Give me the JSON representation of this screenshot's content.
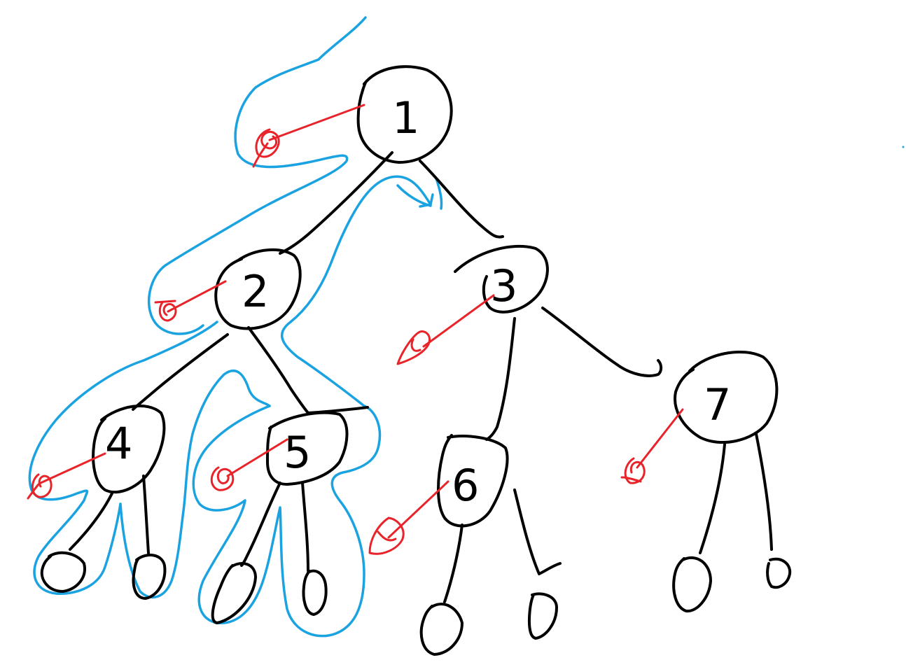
{
  "diagram": {
    "type": "hand-drawn-binary-tree-traversal",
    "colors": {
      "tree_ink": "#000000",
      "traversal_path": "#1aa3e0",
      "visit_arrow": "#e8242a",
      "background": "#ffffff"
    },
    "nodes": [
      {
        "id": "n1",
        "label": "1"
      },
      {
        "id": "n2",
        "label": "2"
      },
      {
        "id": "n3",
        "label": "3"
      },
      {
        "id": "n4",
        "label": "4"
      },
      {
        "id": "n5",
        "label": "5"
      },
      {
        "id": "n6",
        "label": "6"
      },
      {
        "id": "n7",
        "label": "7"
      }
    ],
    "edges": [
      [
        "n1",
        "n2"
      ],
      [
        "n1",
        "n3"
      ],
      [
        "n2",
        "n4"
      ],
      [
        "n2",
        "n5"
      ],
      [
        "n3",
        "n6"
      ],
      [
        "n3",
        "n7"
      ]
    ]
  }
}
